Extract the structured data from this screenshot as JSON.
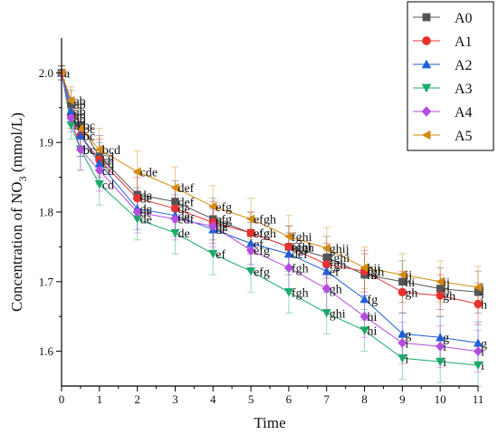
{
  "chart_data": {
    "type": "line",
    "title": "",
    "xlabel": "Time",
    "ylabel": {
      "prefix": "Concentration of NO",
      "sub": "3",
      "suffix": " (mmol/L)"
    },
    "xlim": [
      0,
      11
    ],
    "ylim": [
      1.55,
      2.05
    ],
    "xticks": [
      0,
      1,
      2,
      3,
      4,
      5,
      6,
      7,
      8,
      9,
      10,
      11
    ],
    "yticks": [
      1.6,
      1.7,
      1.8,
      1.9,
      2.0
    ],
    "ytick_labels": [
      "1.6",
      "1.7",
      "1.8",
      "1.9",
      "2.0"
    ],
    "legend_position": "top-right",
    "x": [
      0,
      0.25,
      0.5,
      1,
      2,
      3,
      4,
      5,
      6,
      7,
      8,
      9,
      10,
      11
    ],
    "series": [
      {
        "name": "A0",
        "color": "#555555",
        "marker": "square",
        "values": [
          2.0,
          1.955,
          1.925,
          1.88,
          1.825,
          1.815,
          1.79,
          1.77,
          1.75,
          1.735,
          1.71,
          1.7,
          1.69,
          1.685
        ],
        "errors": [
          0.01,
          0.02,
          0.03,
          0.03,
          0.03,
          0.03,
          0.03,
          0.03,
          0.03,
          0.03,
          0.03,
          0.03,
          0.03,
          0.03
        ],
        "letters": [
          "",
          "ab",
          "bc",
          "cd",
          "de",
          "def",
          "efg",
          "efgh",
          "fghi",
          "fghi",
          "hi",
          "hi",
          "ij",
          "j"
        ]
      },
      {
        "name": "A1",
        "color": "#e8312f",
        "marker": "circle",
        "values": [
          2.0,
          1.94,
          1.91,
          1.875,
          1.82,
          1.805,
          1.785,
          1.77,
          1.75,
          1.725,
          1.715,
          1.685,
          1.68,
          1.668
        ],
        "errors": [
          0.01,
          0.02,
          0.03,
          0.03,
          0.03,
          0.03,
          0.03,
          0.03,
          0.03,
          0.03,
          0.03,
          0.03,
          0.03,
          0.03
        ],
        "letters": [
          "",
          "ab",
          "bc",
          "cd",
          "de",
          "de",
          "de",
          "efg",
          "efgh",
          "fgh",
          "fgh",
          "gh",
          "gh",
          "h"
        ]
      },
      {
        "name": "A2",
        "color": "#1f5fd6",
        "marker": "triangle-up",
        "values": [
          2.0,
          1.945,
          1.91,
          1.87,
          1.805,
          1.795,
          1.775,
          1.755,
          1.74,
          1.715,
          1.675,
          1.625,
          1.62,
          1.612
        ],
        "errors": [
          0.01,
          0.02,
          0.03,
          0.03,
          0.03,
          0.03,
          0.03,
          0.03,
          0.03,
          0.03,
          0.03,
          0.03,
          0.03,
          0.03
        ],
        "letters": [
          "",
          "ab",
          "bc",
          "cd",
          "de",
          "de",
          "de",
          "ef",
          "def",
          "ef",
          "fg",
          "g",
          "g",
          "g"
        ]
      },
      {
        "name": "A3",
        "color": "#1aaa6b",
        "marker": "triangle-down",
        "values": [
          2.0,
          1.925,
          1.89,
          1.84,
          1.79,
          1.77,
          1.74,
          1.715,
          1.685,
          1.655,
          1.63,
          1.59,
          1.585,
          1.58
        ],
        "errors": [
          0.01,
          0.02,
          0.03,
          0.03,
          0.03,
          0.03,
          0.03,
          0.03,
          0.03,
          0.03,
          0.03,
          0.03,
          0.03,
          0.03
        ],
        "letters": [
          "",
          "b",
          "bc",
          "cd",
          "de",
          "de",
          "ef",
          "efg",
          "fgh",
          "ghi",
          "hi",
          "i",
          "i",
          "i"
        ]
      },
      {
        "name": "A4",
        "color": "#b44de0",
        "marker": "diamond",
        "values": [
          2.0,
          1.935,
          1.89,
          1.86,
          1.8,
          1.79,
          1.78,
          1.745,
          1.72,
          1.69,
          1.65,
          1.612,
          1.607,
          1.6
        ],
        "errors": [
          0.01,
          0.02,
          0.03,
          0.03,
          0.03,
          0.03,
          0.03,
          0.03,
          0.03,
          0.03,
          0.03,
          0.03,
          0.03,
          0.03
        ],
        "letters": [
          "",
          "ab",
          "bc",
          "cd",
          "de",
          "cdf",
          "de",
          "efg",
          "fgh",
          "gh",
          "hi",
          "i",
          "i",
          "i"
        ]
      },
      {
        "name": "A5",
        "color": "#d68a0c",
        "marker": "triangle-left",
        "values": [
          2.0,
          1.96,
          1.92,
          1.89,
          1.858,
          1.835,
          1.808,
          1.79,
          1.765,
          1.748,
          1.72,
          1.71,
          1.7,
          1.692
        ],
        "errors": [
          0.01,
          0.02,
          0.03,
          0.03,
          0.03,
          0.03,
          0.03,
          0.03,
          0.03,
          0.03,
          0.03,
          0.03,
          0.03,
          0.03
        ],
        "letters": [
          "a",
          "ab",
          "bc",
          "bcd",
          "cde",
          "def",
          "efg",
          "efgh",
          "fghi",
          "ghij",
          "hij",
          "ij",
          "ij",
          "j"
        ]
      }
    ]
  }
}
